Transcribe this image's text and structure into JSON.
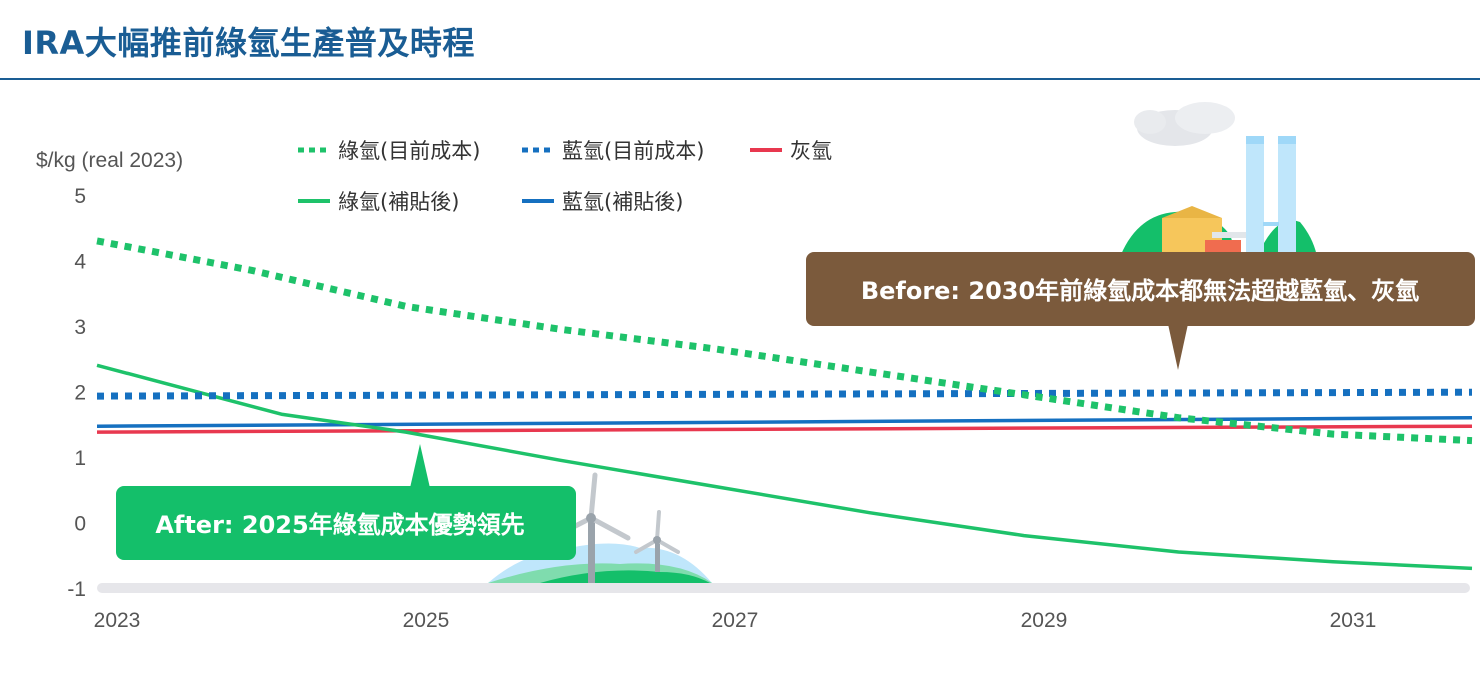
{
  "header": {
    "title": "IRA大幅推前綠氫生產普及時程"
  },
  "colors": {
    "green": "#1ec26a",
    "blue": "#1570c0",
    "red": "#e8384f",
    "callout_before": "#7b5a3c",
    "callout_after": "#14bf6a",
    "title": "#1a5d94"
  },
  "chart_data": {
    "type": "line",
    "ylabel": "$/kg (real 2023)",
    "xlim": [
      2023,
      2031.9
    ],
    "ylim": [
      -1,
      5
    ],
    "x_ticks": [
      "2023",
      "2025",
      "2027",
      "2029",
      "2031"
    ],
    "y_ticks": [
      "5",
      "4",
      "3",
      "2",
      "1",
      "0",
      "-1"
    ],
    "legend_placement": "top",
    "series": [
      {
        "name": "綠氫(目前成本)",
        "color": "#1ec26a",
        "style": "dotted",
        "x": [
          2023,
          2024,
          2025,
          2026,
          2027,
          2028,
          2029,
          2030,
          2031,
          2031.9
        ],
        "y": [
          4.3,
          3.85,
          3.3,
          2.95,
          2.65,
          2.3,
          1.95,
          1.6,
          1.35,
          1.25
        ]
      },
      {
        "name": "藍氫(目前成本)",
        "color": "#1570c0",
        "style": "dotted",
        "x": [
          2023,
          2031.9
        ],
        "y": [
          1.93,
          1.99
        ]
      },
      {
        "name": "灰氫",
        "color": "#e8384f",
        "style": "solid",
        "x": [
          2023,
          2031.9
        ],
        "y": [
          1.38,
          1.47
        ]
      },
      {
        "name": "綠氫(補貼後)",
        "color": "#1ec26a",
        "style": "solid",
        "x": [
          2023,
          2024.2,
          2025,
          2026,
          2027,
          2028,
          2029,
          2030,
          2031,
          2031.9
        ],
        "y": [
          2.4,
          1.65,
          1.38,
          0.95,
          0.55,
          0.15,
          -0.2,
          -0.45,
          -0.6,
          -0.7
        ]
      },
      {
        "name": "藍氫(補貼後)",
        "color": "#1570c0",
        "style": "solid",
        "x": [
          2023,
          2031.9
        ],
        "y": [
          1.47,
          1.6
        ]
      }
    ],
    "annotations": [
      {
        "id": "before",
        "text": "Before: 2030年前綠氫成本都無法超越藍氫、灰氫"
      },
      {
        "id": "after",
        "text": "After: 2025年綠氫成本優勢領先"
      }
    ]
  }
}
